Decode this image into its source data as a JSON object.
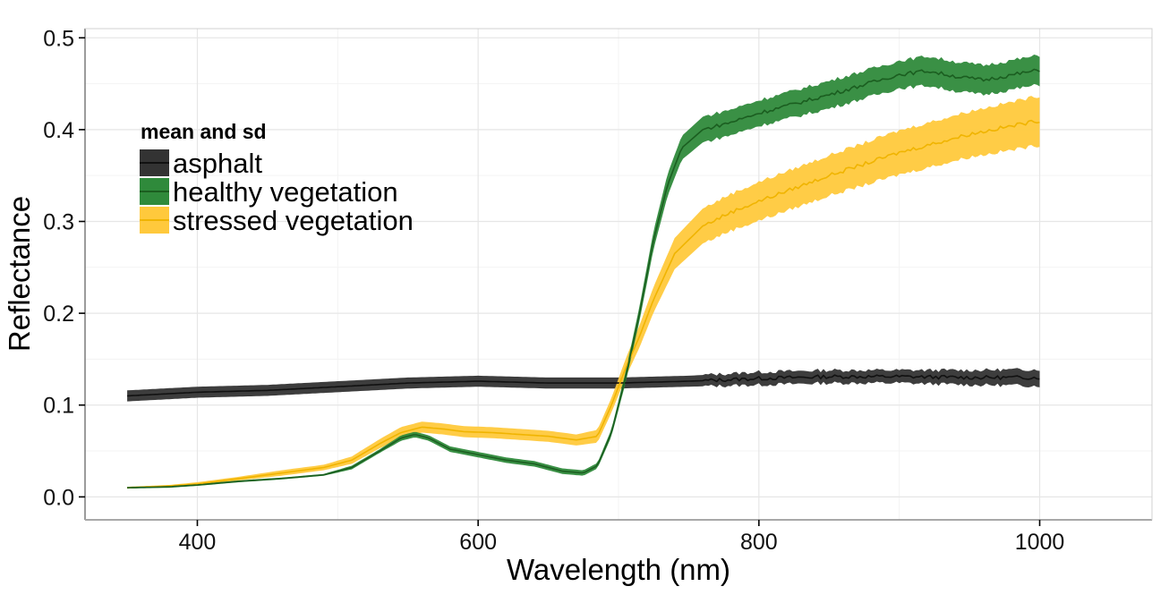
{
  "chart_data": {
    "type": "area",
    "xlabel": "Wavelength (nm)",
    "ylabel": "Reflectance",
    "xlim": [
      320,
      1080
    ],
    "ylim": [
      -0.025,
      0.51
    ],
    "x_ticks": [
      400,
      600,
      800,
      1000
    ],
    "x_minor_ticks": [
      500,
      700,
      900
    ],
    "y_ticks": [
      0.0,
      0.1,
      0.2,
      0.3,
      0.4,
      0.5
    ],
    "y_tick_labels": [
      "0.0",
      "0.1",
      "0.2",
      "0.3",
      "0.4",
      "0.5"
    ],
    "y_minor_ticks": [
      0.05,
      0.15,
      0.25,
      0.35,
      0.45
    ],
    "grid": true,
    "legend": {
      "title": "mean and sd",
      "placement": "top-left"
    },
    "series": [
      {
        "name": "asphalt",
        "line_color": "#111111",
        "fill_color": "#333333",
        "x": [
          350,
          400,
          450,
          500,
          550,
          600,
          650,
          700,
          750,
          800,
          850,
          900,
          950,
          1000
        ],
        "mean": [
          0.11,
          0.114,
          0.116,
          0.12,
          0.124,
          0.126,
          0.124,
          0.124,
          0.126,
          0.129,
          0.131,
          0.131,
          0.13,
          0.13
        ],
        "sd": [
          0.006,
          0.006,
          0.006,
          0.006,
          0.006,
          0.006,
          0.006,
          0.006,
          0.006,
          0.007,
          0.007,
          0.007,
          0.008,
          0.009
        ]
      },
      {
        "name": "healthy vegetation",
        "line_color": "#1b5e20",
        "fill_color": "#2f8a3b",
        "x": [
          350,
          380,
          400,
          430,
          460,
          490,
          510,
          530,
          545,
          555,
          565,
          580,
          600,
          620,
          640,
          660,
          675,
          685,
          695,
          705,
          715,
          725,
          735,
          745,
          760,
          780,
          800,
          850,
          900,
          920,
          940,
          960,
          1000
        ],
        "mean": [
          0.01,
          0.011,
          0.013,
          0.017,
          0.02,
          0.024,
          0.032,
          0.05,
          0.064,
          0.068,
          0.064,
          0.052,
          0.046,
          0.04,
          0.036,
          0.028,
          0.026,
          0.034,
          0.07,
          0.13,
          0.2,
          0.28,
          0.34,
          0.38,
          0.4,
          0.408,
          0.418,
          0.438,
          0.46,
          0.464,
          0.458,
          0.454,
          0.465
        ],
        "sd": [
          0.001,
          0.001,
          0.001,
          0.001,
          0.001,
          0.001,
          0.002,
          0.002,
          0.003,
          0.003,
          0.003,
          0.003,
          0.003,
          0.003,
          0.003,
          0.003,
          0.003,
          0.003,
          0.004,
          0.006,
          0.008,
          0.01,
          0.012,
          0.013,
          0.014,
          0.014,
          0.014,
          0.015,
          0.015,
          0.016,
          0.016,
          0.016,
          0.016
        ]
      },
      {
        "name": "stressed vegetation",
        "line_color": "#f0b400",
        "fill_color": "#ffc93c",
        "x": [
          350,
          380,
          400,
          430,
          460,
          490,
          510,
          530,
          545,
          560,
          575,
          590,
          610,
          630,
          650,
          670,
          685,
          695,
          705,
          715,
          725,
          740,
          760,
          780,
          800,
          850,
          900,
          950,
          1000
        ],
        "mean": [
          0.01,
          0.012,
          0.014,
          0.02,
          0.026,
          0.032,
          0.04,
          0.058,
          0.07,
          0.076,
          0.074,
          0.071,
          0.07,
          0.068,
          0.066,
          0.062,
          0.066,
          0.1,
          0.14,
          0.175,
          0.215,
          0.265,
          0.295,
          0.31,
          0.322,
          0.35,
          0.375,
          0.395,
          0.41
        ],
        "sd": [
          0.001,
          0.001,
          0.002,
          0.002,
          0.003,
          0.003,
          0.004,
          0.005,
          0.006,
          0.006,
          0.006,
          0.006,
          0.006,
          0.006,
          0.006,
          0.006,
          0.007,
          0.008,
          0.01,
          0.012,
          0.014,
          0.017,
          0.019,
          0.02,
          0.021,
          0.022,
          0.024,
          0.025,
          0.027
        ]
      }
    ]
  }
}
